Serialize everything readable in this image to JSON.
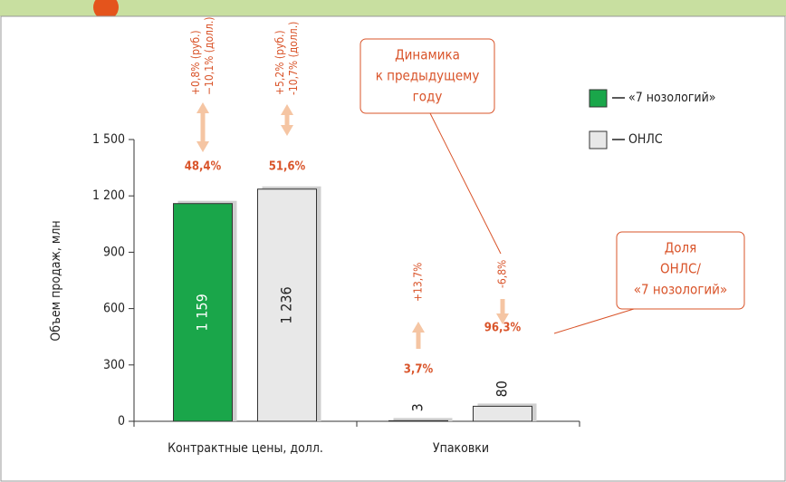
{
  "chart_data": {
    "type": "bar",
    "ylabel": "Объем продаж, млн",
    "categories": [
      "Контрактные цены, долл.",
      "Упаковки"
    ],
    "ylim": [
      0,
      1500
    ],
    "yticks": [
      0,
      300,
      600,
      900,
      {
        "value": 1200,
        "label": "1 200"
      },
      {
        "value": 1500,
        "label": "1 500"
      }
    ],
    "legend": "right",
    "series": [
      {
        "name": "«7 нозологий»",
        "color": "#1aa64a",
        "values": [
          1159,
          3
        ],
        "value_labels": [
          "1 159",
          "3"
        ],
        "shares": [
          "48,4%",
          "3,7%"
        ],
        "changes": [
          [
            "+0,8% (руб.)",
            "−10,1% (долл.)"
          ],
          [
            "+13,7%"
          ]
        ]
      },
      {
        "name": "ОНЛС",
        "color": "#e8e8e8",
        "values": [
          1236,
          80
        ],
        "value_labels": [
          "1 236",
          "80"
        ],
        "shares": [
          "51,6%",
          "96,3%"
        ],
        "changes": [
          [
            "+5,2% (руб.)",
            "-10,7% (долл.)"
          ],
          [
            "-6,8%"
          ]
        ]
      }
    ],
    "annotations": [
      {
        "lines": [
          "Динамика",
          "к предыдущему",
          "году"
        ]
      },
      {
        "lines": [
          "Доля",
          "ОНЛС/",
          "«7 нозологий»"
        ]
      }
    ]
  }
}
